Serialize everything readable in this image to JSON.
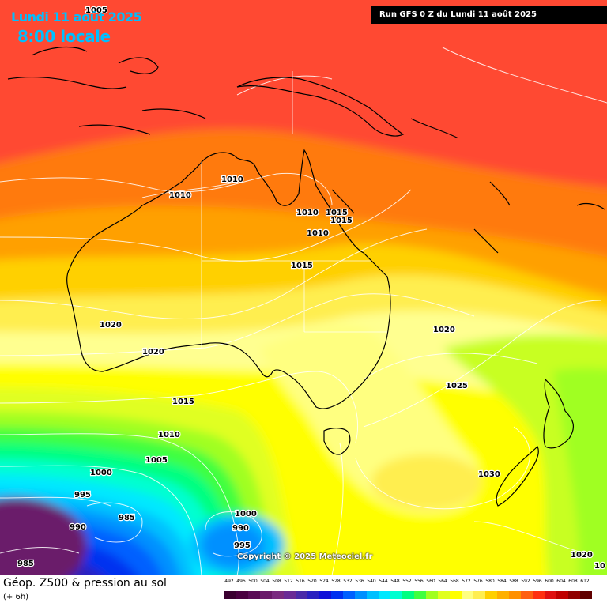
{
  "header": {
    "date": "Lundi 11 août 2025",
    "time": "8:00 locale",
    "run": "Run GFS 0 Z du Lundi 11 août 2025"
  },
  "copyright": "Copyright © 2025 Meteociel.fr",
  "legend": {
    "title": "Géop. Z500 & pression au sol",
    "subtitle": "(+ 6h)",
    "scale": [
      {
        "value": "492",
        "color": "#3a0030"
      },
      {
        "value": "496",
        "color": "#4a0040"
      },
      {
        "value": "500",
        "color": "#5a0a55"
      },
      {
        "value": "504",
        "color": "#6a1a6a"
      },
      {
        "value": "508",
        "color": "#7a2a80"
      },
      {
        "value": "512",
        "color": "#6a2a95"
      },
      {
        "value": "516",
        "color": "#4a2aa8"
      },
      {
        "value": "520",
        "color": "#2a20c0"
      },
      {
        "value": "524",
        "color": "#1010d8"
      },
      {
        "value": "528",
        "color": "#0030f0"
      },
      {
        "value": "532",
        "color": "#0060ff"
      },
      {
        "value": "536",
        "color": "#0090ff"
      },
      {
        "value": "540",
        "color": "#00c0ff"
      },
      {
        "value": "544",
        "color": "#00e8ff"
      },
      {
        "value": "548",
        "color": "#00ffd0"
      },
      {
        "value": "552",
        "color": "#00ff80"
      },
      {
        "value": "556",
        "color": "#40ff40"
      },
      {
        "value": "560",
        "color": "#a0ff20"
      },
      {
        "value": "564",
        "color": "#e0ff20"
      },
      {
        "value": "568",
        "color": "#ffff00"
      },
      {
        "value": "572",
        "color": "#ffff80"
      },
      {
        "value": "576",
        "color": "#ffee50"
      },
      {
        "value": "580",
        "color": "#ffd000"
      },
      {
        "value": "584",
        "color": "#ffb000"
      },
      {
        "value": "588",
        "color": "#ff9000"
      },
      {
        "value": "592",
        "color": "#ff6010"
      },
      {
        "value": "596",
        "color": "#ff3010"
      },
      {
        "value": "600",
        "color": "#e01010"
      },
      {
        "value": "604",
        "color": "#c00000"
      },
      {
        "value": "608",
        "color": "#900000"
      },
      {
        "value": "612",
        "color": "#600000"
      }
    ]
  },
  "isobars": [
    {
      "text": "1005"
    },
    {
      "text": "1010"
    },
    {
      "text": "1010"
    },
    {
      "text": "1010"
    },
    {
      "text": "1015"
    },
    {
      "text": "1015"
    },
    {
      "text": "1010"
    },
    {
      "text": "1015"
    },
    {
      "text": "1020"
    },
    {
      "text": "1020"
    },
    {
      "text": "1020"
    },
    {
      "text": "1025"
    },
    {
      "text": "1015"
    },
    {
      "text": "1010"
    },
    {
      "text": "1005"
    },
    {
      "text": "1000"
    },
    {
      "text": "995"
    },
    {
      "text": "985"
    },
    {
      "text": "990"
    },
    {
      "text": "985"
    },
    {
      "text": "1000"
    },
    {
      "text": "990"
    },
    {
      "text": "995"
    },
    {
      "text": "1030"
    },
    {
      "text": "1020"
    },
    {
      "text": "10"
    }
  ],
  "colors": {
    "tropical_red": "#ff5030",
    "orange": "#ff8c10",
    "yellow": "#ffff00",
    "green": "#40ff40",
    "cyan": "#00e0ff",
    "blue": "#0040ff",
    "purple": "#6a1a6a"
  }
}
